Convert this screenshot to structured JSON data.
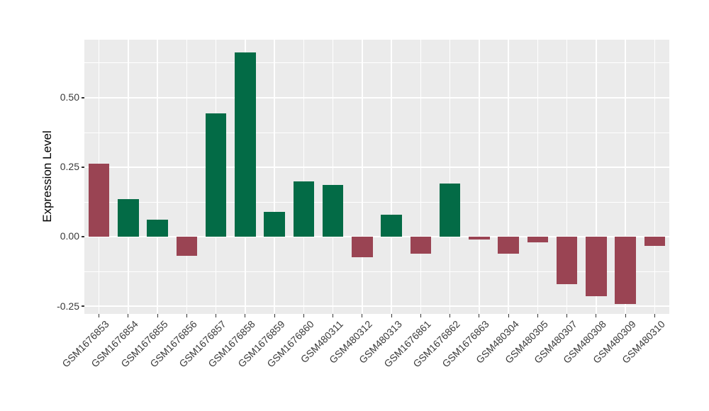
{
  "chart_data": {
    "type": "bar",
    "title": "",
    "xlabel": "",
    "ylabel": "Expression Level",
    "categories": [
      "GSM1676853",
      "GSM1676854",
      "GSM1676855",
      "GSM1676856",
      "GSM1676857",
      "GSM1676858",
      "GSM1676859",
      "GSM1676860",
      "GSM480311",
      "GSM480312",
      "GSM480313",
      "GSM1676861",
      "GSM1676862",
      "GSM1676863",
      "GSM480304",
      "GSM480305",
      "GSM480307",
      "GSM480308",
      "GSM480309",
      "GSM480310"
    ],
    "values": [
      0.263,
      0.135,
      0.061,
      -0.069,
      0.445,
      0.664,
      0.088,
      0.198,
      0.186,
      -0.073,
      0.08,
      -0.062,
      0.19,
      -0.009,
      -0.061,
      -0.021,
      -0.172,
      -0.215,
      -0.242,
      -0.032
    ],
    "bar_color_keys": [
      "red",
      "green",
      "green",
      "red",
      "green",
      "green",
      "green",
      "green",
      "green",
      "red",
      "green",
      "red",
      "green",
      "red",
      "red",
      "red",
      "red",
      "red",
      "red",
      "red"
    ],
    "palette": {
      "green": "#036B46",
      "red": "#9A4453"
    },
    "ylim": [
      -0.278,
      0.709
    ],
    "yticks": {
      "values": [
        0.5,
        0.25,
        0.0,
        -0.25
      ],
      "labels": [
        "0.50",
        "0.25",
        "0.00",
        "-0.25"
      ]
    },
    "minor_yticks": [
      0.625,
      0.375,
      0.125,
      -0.125
    ],
    "grid": true,
    "legend": false,
    "panel_bg": "#EBEBEB",
    "grid_color": "#FFFFFF",
    "tick_color": "#333333",
    "axis_text_color": "#3a3a3a"
  }
}
